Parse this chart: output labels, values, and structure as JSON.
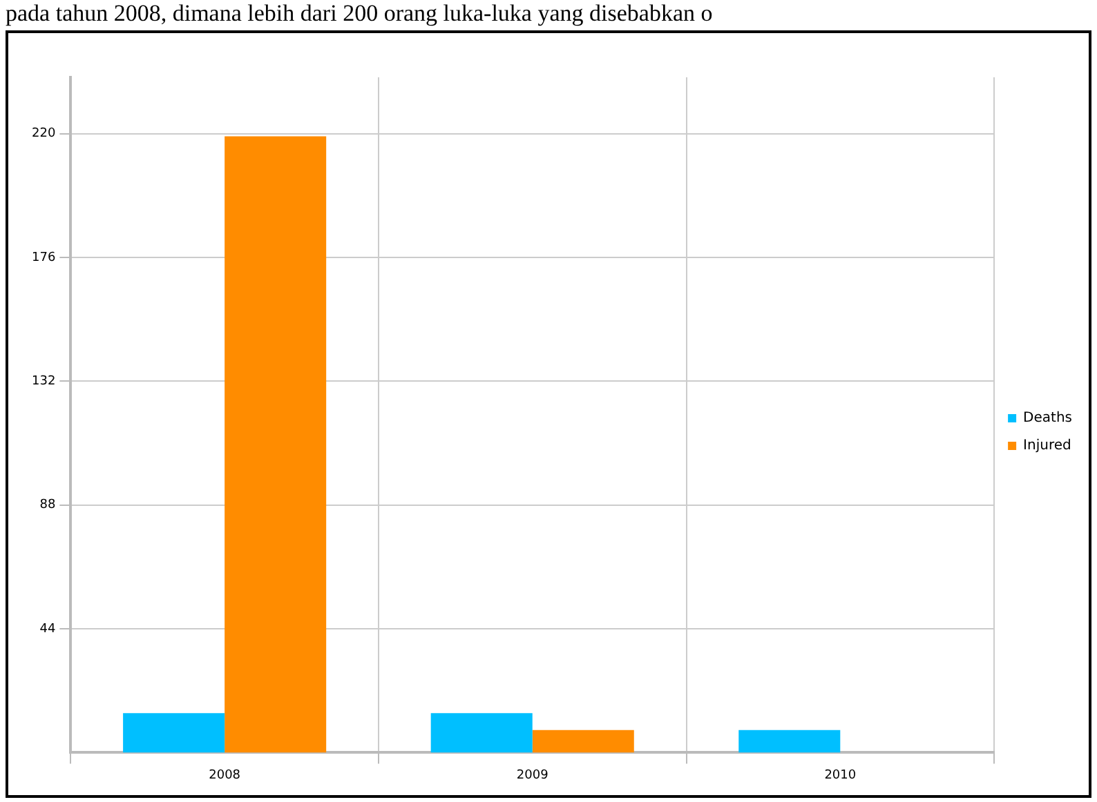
{
  "chart_data": {
    "type": "bar",
    "annotations": [
      "pada tahun 2008, dimana lebih dari 200 orang luka-luka yang disebabkan o"
    ],
    "categories": [
      "2008",
      "2009",
      "2010"
    ],
    "series": [
      {
        "name": "Deaths",
        "color": "#00bfff",
        "values": [
          14,
          14,
          8
        ]
      },
      {
        "name": "Injured",
        "color": "#ff8c00",
        "values": [
          219,
          8,
          0
        ]
      }
    ],
    "ylim": [
      0,
      240
    ],
    "yticks": [
      44,
      88,
      132,
      176,
      220
    ],
    "grid": true,
    "legend": "right"
  }
}
